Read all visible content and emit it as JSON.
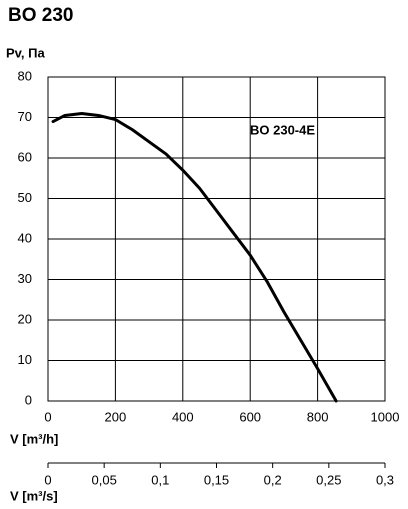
{
  "chart_data": {
    "type": "line",
    "title": "BO 230",
    "ylabel": "Pv, Па",
    "xlabel": "V [m³/h]",
    "x2label": "V [m³/s]",
    "x": [
      15,
      50,
      100,
      150,
      200,
      250,
      300,
      350,
      400,
      450,
      500,
      550,
      600,
      650,
      700,
      750,
      800,
      855
    ],
    "series": [
      {
        "name": "BO 230-4E",
        "color": "#000000",
        "values": [
          69,
          70.5,
          71,
          70.5,
          69.5,
          67,
          64,
          61,
          57,
          52.5,
          47,
          41.5,
          36,
          29.5,
          22,
          15,
          8,
          0
        ]
      }
    ],
    "xlim": [
      0,
      1000
    ],
    "xticks": [
      0,
      200,
      400,
      600,
      800,
      1000
    ],
    "ylim": [
      0,
      80
    ],
    "yticks": [
      0,
      10,
      20,
      30,
      40,
      50,
      60,
      70,
      80
    ],
    "x2lim": [
      0,
      0.3
    ],
    "x2ticks": [
      0,
      {
        "value": 0.05,
        "label": "0,05"
      },
      {
        "value": 0.1,
        "label": "0,1"
      },
      {
        "value": 0.15,
        "label": "0,15"
      },
      {
        "value": 0.2,
        "label": "0,2"
      },
      {
        "value": 0.25,
        "label": "0,25"
      },
      {
        "value": 0.3,
        "label": "0,3"
      }
    ],
    "grid": true
  }
}
